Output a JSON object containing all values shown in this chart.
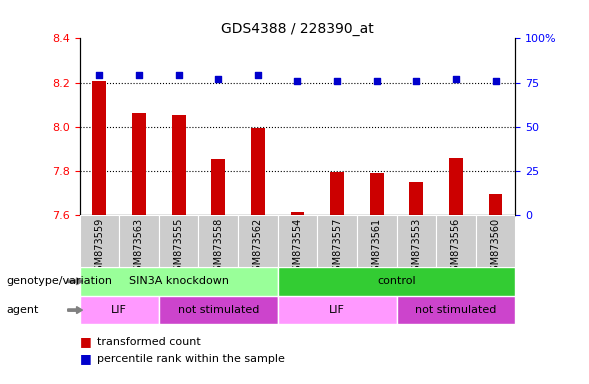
{
  "title": "GDS4388 / 228390_at",
  "samples": [
    "GSM873559",
    "GSM873563",
    "GSM873555",
    "GSM873558",
    "GSM873562",
    "GSM873554",
    "GSM873557",
    "GSM873561",
    "GSM873553",
    "GSM873556",
    "GSM873560"
  ],
  "bar_values": [
    8.205,
    8.06,
    8.055,
    7.855,
    7.995,
    7.612,
    7.795,
    7.792,
    7.748,
    7.86,
    7.695
  ],
  "percentile_values": [
    79,
    79,
    79,
    77,
    79,
    76,
    76,
    76,
    76,
    77,
    76
  ],
  "ylim_left": [
    7.6,
    8.4
  ],
  "ylim_right": [
    0,
    100
  ],
  "yticks_left": [
    7.6,
    7.8,
    8.0,
    8.2,
    8.4
  ],
  "yticks_right": [
    0,
    25,
    50,
    75,
    100
  ],
  "bar_color": "#cc0000",
  "dot_color": "#0000cc",
  "grid_levels": [
    8.2,
    8.0,
    7.8
  ],
  "genotype_groups": [
    {
      "label": "SIN3A knockdown",
      "start": 0,
      "end": 4,
      "color": "#99ff99"
    },
    {
      "label": "control",
      "start": 5,
      "end": 10,
      "color": "#33cc33"
    }
  ],
  "agent_groups": [
    {
      "label": "LIF",
      "start": 0,
      "end": 1,
      "color": "#ff99ff"
    },
    {
      "label": "not stimulated",
      "start": 2,
      "end": 4,
      "color": "#cc44cc"
    },
    {
      "label": "LIF",
      "start": 5,
      "end": 7,
      "color": "#ff99ff"
    },
    {
      "label": "not stimulated",
      "start": 8,
      "end": 10,
      "color": "#cc44cc"
    }
  ],
  "legend_red": "transformed count",
  "legend_blue": "percentile rank within the sample",
  "genotype_label": "genotype/variation",
  "agent_label": "agent",
  "bar_width": 0.35,
  "tick_bg_color": "#cccccc",
  "figure_bg": "#ffffff"
}
